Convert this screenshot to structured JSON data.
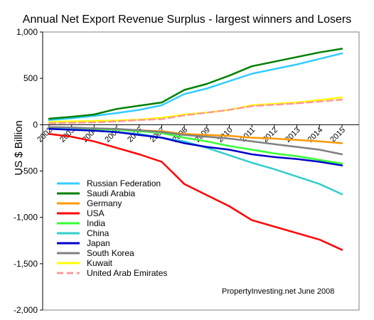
{
  "chart_data": {
    "type": "line",
    "title": "Annual Net Export Revenue Surplus -  largest winners and Losers",
    "xlabel": "",
    "ylabel": "US $ Billion",
    "x": [
      2002,
      2003,
      2004,
      2005,
      2006,
      2007,
      2008,
      2009,
      2010,
      2011,
      2012,
      2013,
      2014,
      2015
    ],
    "x_tick_labels": [
      "2002",
      "2003",
      "2004",
      "2005",
      "2006",
      "2007",
      "2008",
      "2009",
      "2010",
      "2011",
      "2012",
      "2013",
      "2014",
      "2015"
    ],
    "ylim": [
      -2000,
      1000
    ],
    "y_ticks": [
      1000,
      500,
      0,
      -500,
      -1000,
      -1500,
      -2000
    ],
    "y_tick_labels": [
      "1,000",
      "500",
      "0",
      "-500",
      "-1,000",
      "-1,500",
      "-2,000"
    ],
    "grid": false,
    "legend_position": "bottom-left",
    "annotation": "PropertyInvesting.net June 2008",
    "series": [
      {
        "name": "Russian Federation",
        "color": "#33ccff",
        "dashed": false,
        "values": [
          50,
          70,
          95,
          125,
          160,
          210,
          330,
          390,
          470,
          550,
          600,
          650,
          710,
          770
        ]
      },
      {
        "name": "Saudi Arabia",
        "color": "#008000",
        "dashed": false,
        "values": [
          65,
          85,
          110,
          170,
          205,
          240,
          375,
          440,
          530,
          630,
          680,
          730,
          780,
          820
        ]
      },
      {
        "name": "Germany",
        "color": "#ff9900",
        "dashed": false,
        "values": [
          -30,
          -40,
          -45,
          -50,
          -60,
          -70,
          -100,
          -110,
          -120,
          -140,
          -150,
          -165,
          -180,
          -200
        ]
      },
      {
        "name": "USA",
        "color": "#ff0000",
        "dashed": false,
        "values": [
          -100,
          -130,
          -180,
          -250,
          -320,
          -400,
          -640,
          -760,
          -880,
          -1030,
          -1100,
          -1170,
          -1240,
          -1350
        ]
      },
      {
        "name": "India",
        "color": "#33ff33",
        "dashed": false,
        "values": [
          -30,
          -35,
          -45,
          -55,
          -70,
          -90,
          -140,
          -180,
          -230,
          -270,
          -310,
          -340,
          -380,
          -420
        ]
      },
      {
        "name": "China",
        "color": "#33cccc",
        "dashed": false,
        "values": [
          -35,
          -45,
          -65,
          -80,
          -100,
          -140,
          -180,
          -250,
          -330,
          -410,
          -480,
          -560,
          -640,
          -750
        ]
      },
      {
        "name": "Japan",
        "color": "#0000cc",
        "dashed": false,
        "values": [
          -45,
          -55,
          -65,
          -80,
          -110,
          -140,
          -200,
          -240,
          -270,
          -320,
          -350,
          -370,
          -400,
          -440
        ]
      },
      {
        "name": "South Korea",
        "color": "#808080",
        "dashed": false,
        "values": [
          -25,
          -30,
          -40,
          -45,
          -60,
          -80,
          -110,
          -130,
          -150,
          -180,
          -210,
          -240,
          -270,
          -320
        ]
      },
      {
        "name": "Kuwait",
        "color": "#ffff00",
        "dashed": false,
        "values": [
          30,
          35,
          40,
          45,
          55,
          75,
          110,
          130,
          160,
          210,
          225,
          240,
          265,
          295
        ]
      },
      {
        "name": "United Arab Emirates",
        "color": "#ff9999",
        "dashed": true,
        "values": [
          15,
          20,
          25,
          35,
          50,
          60,
          100,
          130,
          160,
          200,
          215,
          230,
          250,
          270
        ]
      }
    ]
  }
}
